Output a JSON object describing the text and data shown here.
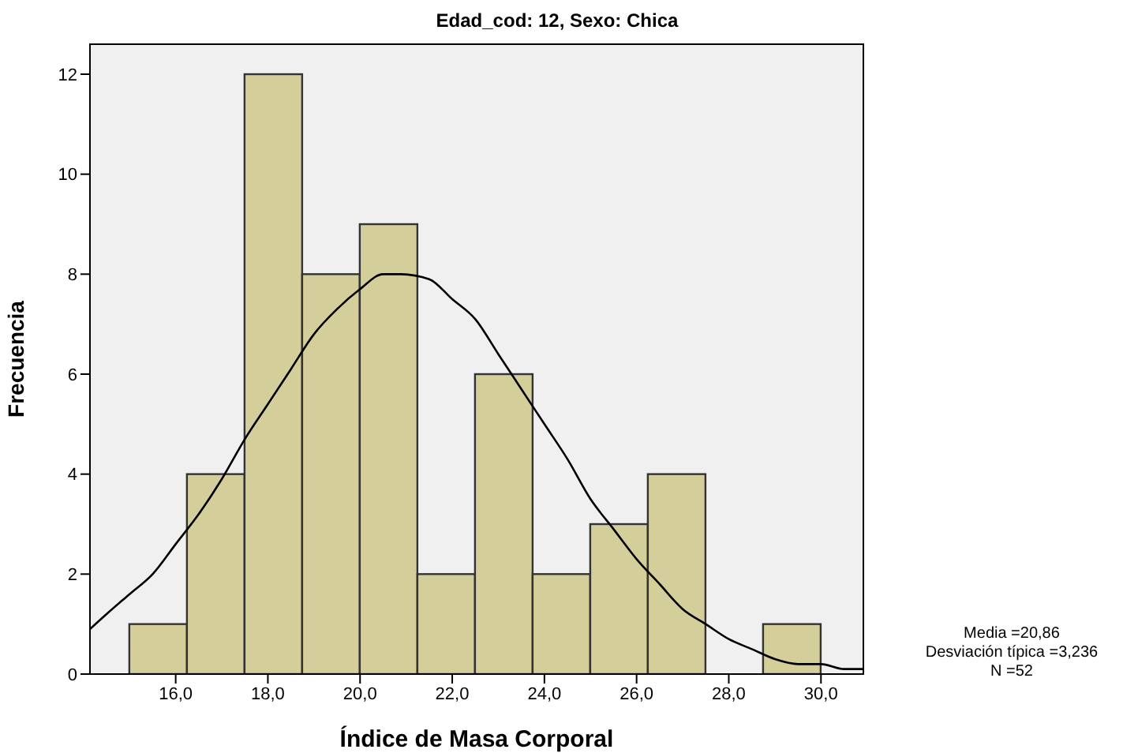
{
  "chart_data": {
    "type": "histogram",
    "title": "Edad_cod: 12, Sexo: Chica",
    "xlabel": "Índice de Masa Corporal",
    "ylabel": "Frecuencia",
    "bins": [
      15.0,
      16.25,
      17.5,
      18.75,
      20.0,
      21.25,
      22.5,
      23.75,
      25.0,
      26.25,
      27.5,
      28.75,
      30.0
    ],
    "values": [
      1,
      4,
      12,
      8,
      9,
      2,
      6,
      2,
      3,
      4,
      0,
      1
    ],
    "color": "#d3ce9a",
    "series": [
      {
        "type": "line",
        "color": "#000000",
        "x": [
          14.14,
          14.5,
          15.0,
          15.5,
          16.0,
          16.5,
          17.0,
          17.5,
          18.0,
          18.5,
          19.0,
          19.5,
          20.0,
          20.5,
          20.86,
          21.5,
          22.0,
          22.5,
          23.0,
          23.5,
          24.0,
          24.5,
          25.0,
          25.5,
          26.0,
          26.5,
          27.0,
          27.5,
          28.0,
          28.5,
          29.0,
          29.5,
          30.0,
          30.5,
          30.92
        ],
        "values": [
          0.9,
          1.2,
          1.6,
          2.0,
          2.6,
          3.2,
          3.9,
          4.7,
          5.4,
          6.1,
          6.8,
          7.3,
          7.7,
          8.0,
          8.0,
          7.9,
          7.5,
          7.1,
          6.4,
          5.7,
          5.0,
          4.3,
          3.5,
          2.9,
          2.3,
          1.8,
          1.3,
          1.0,
          0.7,
          0.5,
          0.3,
          0.2,
          0.2,
          0.1,
          0.1
        ]
      }
    ],
    "xlim": [
      14.14,
      30.92
    ],
    "ylim": [
      0,
      12.6
    ],
    "xticks": [
      {
        "value": 16,
        "label": "16,0"
      },
      {
        "value": 18,
        "label": "18,0"
      },
      {
        "value": 20,
        "label": "20,0"
      },
      {
        "value": 22,
        "label": "22,0"
      },
      {
        "value": 24,
        "label": "24,0"
      },
      {
        "value": 26,
        "label": "26,0"
      },
      {
        "value": 28,
        "label": "28,0"
      },
      {
        "value": 30,
        "label": "30,0"
      }
    ],
    "yticks": [
      0,
      2,
      4,
      6,
      8,
      10,
      12
    ],
    "annotations": [
      "Media =20,86",
      "Desviación típica =3,236",
      "N =52"
    ]
  }
}
